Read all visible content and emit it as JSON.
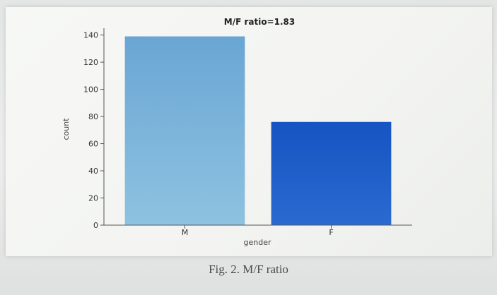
{
  "caption": "Fig. 2.   M/F ratio",
  "chart_data": {
    "type": "bar",
    "title": "M/F ratio=1.83",
    "xlabel": "gender",
    "ylabel": "count",
    "categories": [
      "M",
      "F"
    ],
    "values": [
      139,
      76
    ],
    "ylim": [
      0,
      145
    ],
    "yticks": [
      0,
      20,
      40,
      60,
      80,
      100,
      120,
      140
    ],
    "grid": false,
    "colors": {
      "M_top": "#6aa6d4",
      "M_bottom": "#8ec2e0",
      "F_top": "#1554c2",
      "F_bottom": "#2a6ad0"
    }
  }
}
